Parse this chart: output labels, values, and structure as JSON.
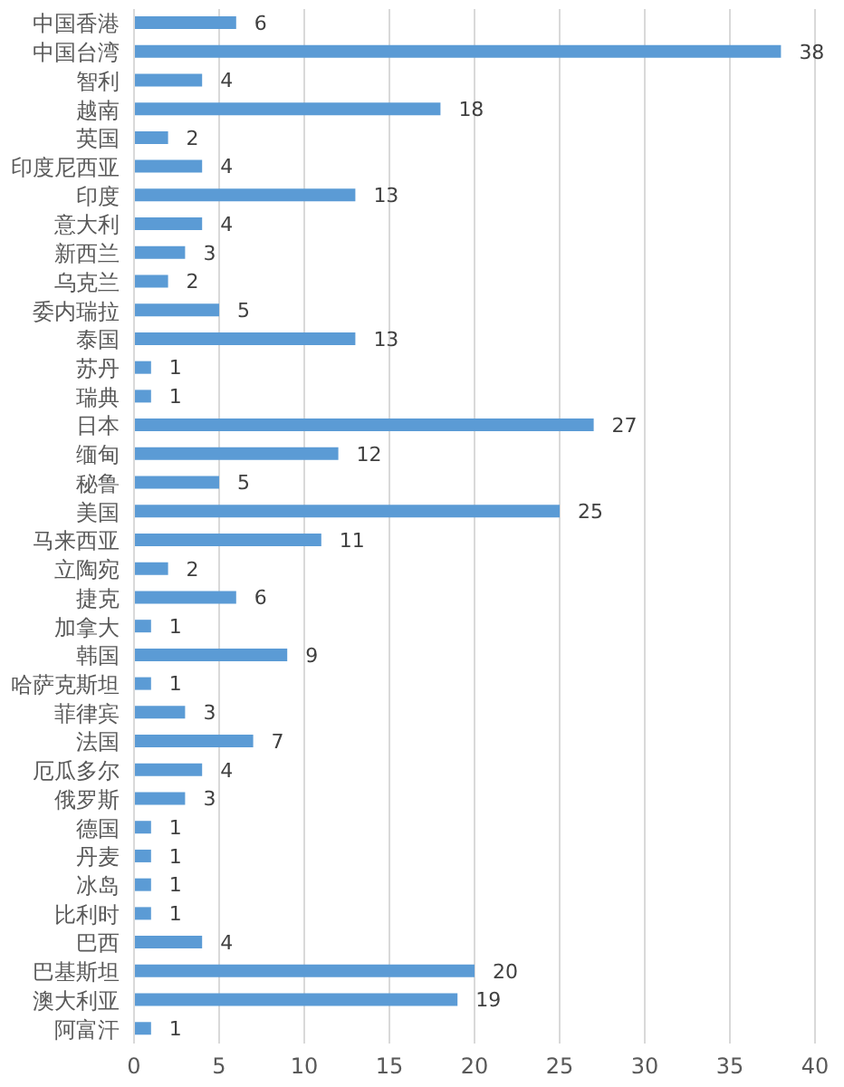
{
  "chart_data": {
    "type": "bar",
    "orientation": "horizontal",
    "categories": [
      "中国香港",
      "中国台湾",
      "智利",
      "越南",
      "英国",
      "印度尼西亚",
      "印度",
      "意大利",
      "新西兰",
      "乌克兰",
      "委内瑞拉",
      "泰国",
      "苏丹",
      "瑞典",
      "日本",
      "缅甸",
      "秘鲁",
      "美国",
      "马来西亚",
      "立陶宛",
      "捷克",
      "加拿大",
      "韩国",
      "哈萨克斯坦",
      "菲律宾",
      "法国",
      "厄瓜多尔",
      "俄罗斯",
      "德国",
      "丹麦",
      "冰岛",
      "比利时",
      "巴西",
      "巴基斯坦",
      "澳大利亚",
      "阿富汗"
    ],
    "values": [
      6,
      38,
      4,
      18,
      2,
      4,
      13,
      4,
      3,
      2,
      5,
      13,
      1,
      1,
      27,
      12,
      5,
      25,
      11,
      2,
      6,
      1,
      9,
      1,
      3,
      7,
      4,
      3,
      1,
      1,
      1,
      1,
      4,
      20,
      19,
      1
    ],
    "color": "#5b9bd5",
    "xlim": [
      0,
      40
    ],
    "xticks": [
      0,
      5,
      10,
      15,
      20,
      25,
      30,
      35,
      40
    ],
    "grid": "x",
    "data_labels": true
  }
}
